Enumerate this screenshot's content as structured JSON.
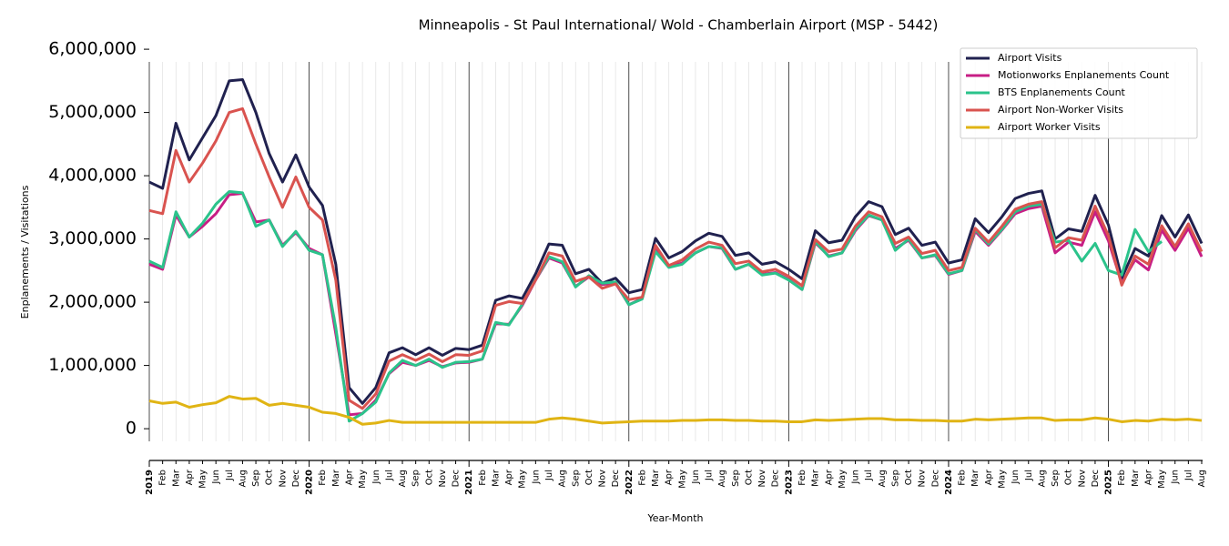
{
  "chart_data": {
    "type": "line",
    "title": "Minneapolis - St Paul International/ Wold - Chamberlain Airport (MSP - 5442)",
    "x_label": "Year-Month",
    "y_label": "Enplanements / Visitations",
    "categories": [
      "2019",
      "Feb",
      "Mar",
      "Apr",
      "May",
      "Jun",
      "Jul",
      "Aug",
      "Sep",
      "Oct",
      "Nov",
      "Dec",
      "2020",
      "Feb",
      "Mar",
      "Apr",
      "May",
      "Jun",
      "Jul",
      "Aug",
      "Sep",
      "Oct",
      "Nov",
      "Dec",
      "2021",
      "Feb",
      "Mar",
      "Apr",
      "May",
      "Jun",
      "Jul",
      "Aug",
      "Sep",
      "Oct",
      "Nov",
      "Dec",
      "2022",
      "Feb",
      "Mar",
      "Apr",
      "May",
      "Jun",
      "Jul",
      "Aug",
      "Sep",
      "Oct",
      "Nov",
      "Dec",
      "2023",
      "Feb",
      "Mar",
      "Apr",
      "May",
      "Jun",
      "Jul",
      "Aug",
      "Sep",
      "Oct",
      "Nov",
      "Dec",
      "2024",
      "Feb",
      "Mar",
      "Apr",
      "May",
      "Jun",
      "Jul",
      "Aug",
      "Sep",
      "Oct",
      "Nov",
      "Dec",
      "2025",
      "Feb",
      "Mar",
      "Apr",
      "May",
      "Jun",
      "Jul",
      "Aug"
    ],
    "ylim": [
      -200000,
      5800000
    ],
    "yticks": [
      0,
      {
        "value": 1000000,
        "label": "1,000,000"
      },
      {
        "value": 2000000,
        "label": "2,000,000"
      },
      {
        "value": 3000000,
        "label": "3,000,000"
      },
      {
        "value": 4000000,
        "label": "4,000,000"
      },
      {
        "value": 5000000,
        "label": "5,000,000"
      },
      {
        "value": 6000000,
        "label": "6,000,000"
      }
    ],
    "legend": "upper right",
    "series": [
      {
        "name": "Airport Visits",
        "color": "#20214f",
        "values": [
          3900000,
          3800000,
          4830000,
          4250000,
          4600000,
          4950000,
          5500000,
          5520000,
          5000000,
          4350000,
          3900000,
          4330000,
          3820000,
          3530000,
          2600000,
          650000,
          400000,
          650000,
          1200000,
          1280000,
          1170000,
          1280000,
          1160000,
          1270000,
          1250000,
          1320000,
          2030000,
          2100000,
          2060000,
          2450000,
          2920000,
          2900000,
          2450000,
          2520000,
          2300000,
          2380000,
          2150000,
          2200000,
          3010000,
          2700000,
          2800000,
          2970000,
          3090000,
          3040000,
          2740000,
          2780000,
          2600000,
          2640000,
          2520000,
          2370000,
          3130000,
          2940000,
          2980000,
          3350000,
          3590000,
          3510000,
          3070000,
          3170000,
          2900000,
          2950000,
          2620000,
          2670000,
          3320000,
          3100000,
          3350000,
          3640000,
          3720000,
          3760000,
          3000000,
          3160000,
          3120000,
          3690000,
          3220000,
          2380000,
          2850000,
          2730000,
          3370000,
          3030000,
          3380000,
          2930000
        ]
      },
      {
        "name": "Motionworks Enplanements Count",
        "color": "#c71e85",
        "values": [
          2600000,
          2520000,
          3380000,
          3030000,
          3200000,
          3400000,
          3700000,
          3720000,
          3270000,
          3300000,
          2900000,
          3100000,
          2850000,
          2750000,
          1500000,
          220000,
          240000,
          450000,
          870000,
          1050000,
          1000000,
          1080000,
          980000,
          1040000,
          1050000,
          1100000,
          1660000,
          1650000,
          1950000,
          2350000,
          2700000,
          2620000,
          2250000,
          2400000,
          2280000,
          2300000,
          1960000,
          2060000,
          2850000,
          2560000,
          2620000,
          2780000,
          2880000,
          2850000,
          2520000,
          2600000,
          2440000,
          2470000,
          2360000,
          2200000,
          2940000,
          2730000,
          2780000,
          3130000,
          3370000,
          3300000,
          2850000,
          2980000,
          2700000,
          2740000,
          2440000,
          2500000,
          3120000,
          2900000,
          3140000,
          3400000,
          3480000,
          3520000,
          2780000,
          2950000,
          2900000,
          3430000,
          2970000,
          2300000,
          2670000,
          2510000,
          3140000,
          2820000,
          3170000,
          2720000
        ]
      },
      {
        "name": "BTS Enplanements Count",
        "color": "#2bc38b",
        "values": [
          2650000,
          2550000,
          3430000,
          3030000,
          3250000,
          3550000,
          3750000,
          3730000,
          3200000,
          3300000,
          2880000,
          3120000,
          2820000,
          2750000,
          1600000,
          120000,
          240000,
          420000,
          880000,
          1080000,
          1000000,
          1100000,
          970000,
          1050000,
          1060000,
          1100000,
          1680000,
          1640000,
          1970000,
          2360000,
          2720000,
          2640000,
          2240000,
          2420000,
          2300000,
          2320000,
          1960000,
          2050000,
          2800000,
          2550000,
          2600000,
          2780000,
          2880000,
          2860000,
          2520000,
          2600000,
          2430000,
          2460000,
          2350000,
          2200000,
          2960000,
          2720000,
          2780000,
          3150000,
          3380000,
          3300000,
          2820000,
          3000000,
          2700000,
          2750000,
          2450000,
          2500000,
          3150000,
          2920000,
          3150000,
          3430000,
          3520000,
          3550000,
          2950000,
          2980000,
          2650000,
          2930000,
          2500000,
          2430000,
          3150000,
          2800000,
          2960000,
          null,
          null,
          null
        ]
      },
      {
        "name": "Airport Non-Worker Visits",
        "color": "#d9534f",
        "values": [
          3450000,
          3400000,
          4400000,
          3900000,
          4200000,
          4550000,
          5000000,
          5060000,
          4500000,
          3980000,
          3500000,
          3980000,
          3500000,
          3300000,
          2350000,
          450000,
          320000,
          550000,
          1070000,
          1170000,
          1080000,
          1180000,
          1060000,
          1170000,
          1160000,
          1230000,
          1950000,
          2010000,
          1980000,
          2350000,
          2780000,
          2730000,
          2330000,
          2400000,
          2220000,
          2290000,
          2040000,
          2080000,
          2900000,
          2580000,
          2670000,
          2840000,
          2950000,
          2900000,
          2610000,
          2650000,
          2480000,
          2520000,
          2410000,
          2260000,
          2990000,
          2800000,
          2840000,
          3200000,
          3430000,
          3350000,
          2930000,
          3030000,
          2770000,
          2820000,
          2500000,
          2550000,
          3170000,
          2950000,
          3200000,
          3470000,
          3550000,
          3590000,
          2860000,
          3020000,
          2980000,
          3520000,
          3050000,
          2270000,
          2730000,
          2600000,
          3210000,
          2880000,
          3240000,
          2800000
        ]
      },
      {
        "name": "Airport Worker Visits",
        "color": "#e0b414",
        "values": [
          440000,
          400000,
          420000,
          340000,
          380000,
          410000,
          510000,
          470000,
          480000,
          370000,
          400000,
          370000,
          340000,
          260000,
          240000,
          180000,
          70000,
          90000,
          130000,
          100000,
          100000,
          100000,
          100000,
          100000,
          100000,
          100000,
          100000,
          100000,
          100000,
          100000,
          150000,
          170000,
          150000,
          120000,
          90000,
          100000,
          110000,
          120000,
          120000,
          120000,
          130000,
          130000,
          140000,
          140000,
          130000,
          130000,
          120000,
          120000,
          110000,
          110000,
          140000,
          130000,
          140000,
          150000,
          160000,
          160000,
          140000,
          140000,
          130000,
          130000,
          120000,
          120000,
          150000,
          140000,
          150000,
          160000,
          170000,
          170000,
          130000,
          140000,
          140000,
          170000,
          150000,
          110000,
          130000,
          120000,
          150000,
          140000,
          150000,
          130000
        ]
      }
    ]
  }
}
